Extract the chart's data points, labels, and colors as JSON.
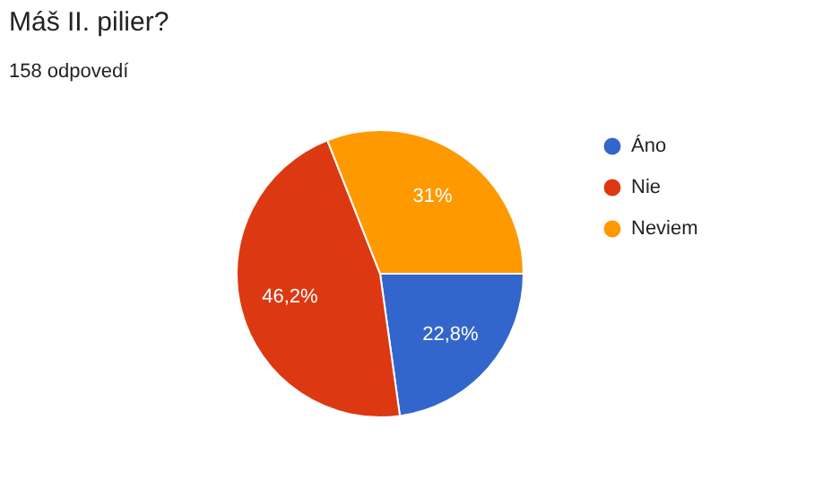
{
  "chart_data": {
    "type": "pie",
    "title": "Máš II. pilier?",
    "subtitle": "158 odpovedí",
    "categories": [
      "Áno",
      "Nie",
      "Neviem"
    ],
    "values": [
      22.8,
      46.2,
      31
    ],
    "colors": [
      "#3366cc",
      "#dc3912",
      "#ff9900"
    ],
    "value_labels": [
      "22,8%",
      "46,2%",
      "31%"
    ],
    "legend": "right"
  }
}
